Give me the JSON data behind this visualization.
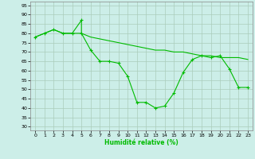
{
  "line1_x": [
    0,
    1,
    2,
    3,
    4,
    5,
    5,
    6,
    7,
    8,
    9,
    10,
    11,
    12,
    13,
    14,
    15,
    16,
    17,
    18,
    19,
    20,
    21,
    22,
    23
  ],
  "line1_y": [
    78,
    80,
    82,
    80,
    80,
    87,
    80,
    71,
    65,
    65,
    64,
    57,
    43,
    43,
    40,
    41,
    48,
    59,
    66,
    68,
    67,
    68,
    61,
    51,
    51
  ],
  "line2_x": [
    0,
    1,
    2,
    3,
    4,
    5,
    6,
    7,
    8,
    9,
    10,
    11,
    12,
    13,
    14,
    15,
    16,
    17,
    18,
    19,
    20,
    21,
    22,
    23
  ],
  "line2_y": [
    78,
    80,
    82,
    80,
    80,
    80,
    78,
    77,
    76,
    75,
    74,
    73,
    72,
    71,
    71,
    70,
    70,
    69,
    68,
    68,
    67,
    67,
    67,
    66
  ],
  "line_color": "#00bb00",
  "bg_color": "#cceee8",
  "grid_color": "#aaccbb",
  "xlabel": "Humidité relative (%)",
  "xlim": [
    -0.5,
    23.5
  ],
  "ylim": [
    28,
    97
  ],
  "yticks": [
    30,
    35,
    40,
    45,
    50,
    55,
    60,
    65,
    70,
    75,
    80,
    85,
    90,
    95
  ],
  "xticks": [
    0,
    1,
    2,
    3,
    4,
    5,
    6,
    7,
    8,
    9,
    10,
    11,
    12,
    13,
    14,
    15,
    16,
    17,
    18,
    19,
    20,
    21,
    22,
    23
  ]
}
